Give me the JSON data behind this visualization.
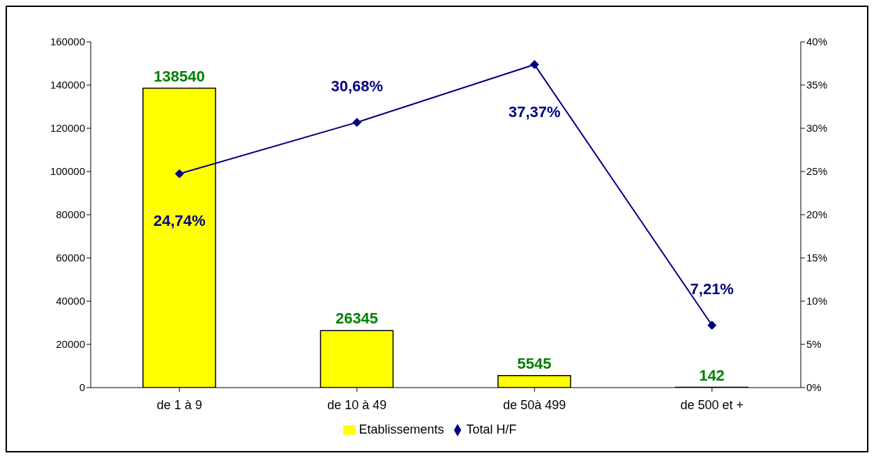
{
  "chart_data": {
    "type": "bar",
    "categories": [
      "de 1 à 9",
      "de 10 à 49",
      "de 50à 499",
      "de 500 et +"
    ],
    "series": [
      {
        "name": "Etablissements",
        "color": "#ffff00",
        "values": [
          138540,
          26345,
          5545,
          142
        ],
        "value_labels": [
          "138540",
          "26345",
          "5545",
          "142"
        ]
      },
      {
        "name": "Total H/F",
        "type": "line",
        "axis": "y2",
        "color": "#000080",
        "marker": "diamond",
        "values": [
          24.74,
          30.68,
          37.37,
          7.21
        ],
        "value_labels": [
          "24,74%",
          "30,68%",
          "37,37%",
          "7,21%"
        ]
      }
    ],
    "ylim": [
      0,
      160000
    ],
    "yticks": [
      0,
      20000,
      40000,
      60000,
      80000,
      100000,
      120000,
      140000,
      160000
    ],
    "y2lim": [
      0,
      40
    ],
    "y2ticks": [
      {
        "value": 0,
        "label": "0%"
      },
      {
        "value": 5,
        "label": "5%"
      },
      {
        "value": 10,
        "label": "10%"
      },
      {
        "value": 15,
        "label": "15%"
      },
      {
        "value": 20,
        "label": "20%"
      },
      {
        "value": 25,
        "label": "25%"
      },
      {
        "value": 30,
        "label": "30%"
      },
      {
        "value": 35,
        "label": "35%"
      },
      {
        "value": 40,
        "label": "40%"
      }
    ],
    "grid": false,
    "legend": "bottom"
  }
}
